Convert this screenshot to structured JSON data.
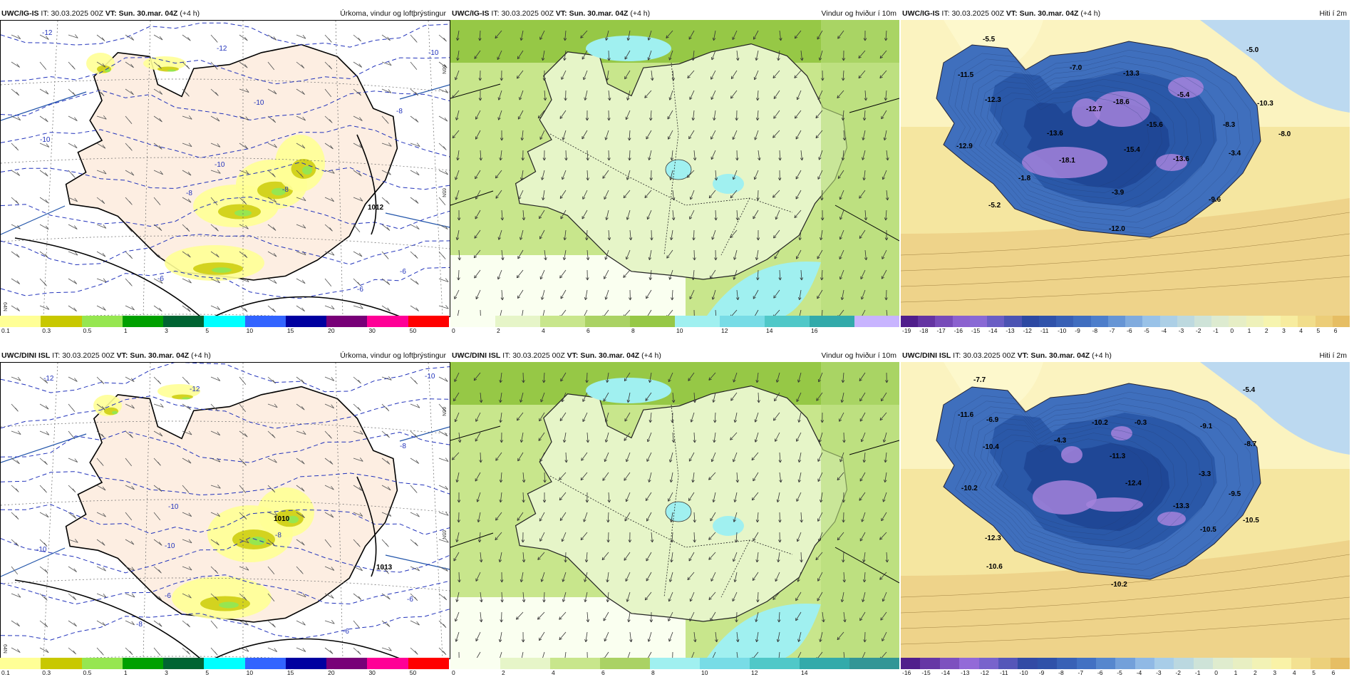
{
  "rows": [
    {
      "model": "UWC/IG-IS",
      "panels": [
        {
          "product": "Úrkoma, vindur og loftþrýstingur",
          "type": "precip",
          "map_labels": [
            "-12",
            "-12",
            "-10",
            "-10",
            "-10",
            "-10",
            "-8",
            "-8",
            "-8",
            "-6",
            "-6",
            "-6",
            "1012"
          ],
          "lat_labels": [
            "66N",
            "65N",
            "64N"
          ]
        },
        {
          "product": "Vindur og hviður í 10m",
          "type": "wind",
          "map_labels": []
        },
        {
          "product": "Hiti í 2m",
          "type": "temp",
          "map_labels": [
            "-5.5",
            "-11.5",
            "-12.3",
            "-12.9",
            "-7.0",
            "-13.3",
            "-18.6",
            "-12.7",
            "-13.6",
            "-18.1",
            "-1.8",
            "-5.2",
            "-15.6",
            "-15.4",
            "-5.4",
            "-10.3",
            "-5.0",
            "-8.3",
            "-8.0",
            "-3.4",
            "-13.6",
            "-3.9",
            "-12.0",
            "-9.6"
          ]
        }
      ]
    },
    {
      "model": "UWC/DINI ISL",
      "panels": [
        {
          "product": "Úrkoma, vindur og loftþrýstingur",
          "type": "precip",
          "map_labels": [
            "-12",
            "-12",
            "-10",
            "-10",
            "-10",
            "-10",
            "-8",
            "-8",
            "-8",
            "-6",
            "-6",
            "-6",
            "1010",
            "1013"
          ],
          "lat_labels": [
            "66N",
            "65N",
            "64N"
          ]
        },
        {
          "product": "Vindur og hviður í 10m",
          "type": "wind",
          "map_labels": []
        },
        {
          "product": "Hiti í 2m",
          "type": "temp",
          "map_labels": [
            "-7.7",
            "-11.6",
            "-6.9",
            "-10.4",
            "-4.3",
            "-10.2",
            "-0.3",
            "-11.3",
            "-9.1",
            "-5.4",
            "-8.7",
            "-3.3",
            "-10.5",
            "-12.3",
            "-10.2",
            "-12.4",
            "-13.3",
            "-9.5",
            "-10.5",
            "-10.6",
            "-10.2"
          ]
        }
      ]
    }
  ],
  "run_info": {
    "it_label": "IT:",
    "it_value": "30.03.2025 00Z",
    "vt_label": "VT:",
    "vt_value": "Sun. 30.mar. 04Z",
    "lead": "(+4 h)"
  },
  "colorbars": {
    "precip": {
      "colors": [
        "#ffff96",
        "#c8c800",
        "#96e650",
        "#00a000",
        "#006432",
        "#00ffff",
        "#3264ff",
        "#0000a0",
        "#780078",
        "#ff0096",
        "#ff0000"
      ],
      "ticks": [
        "0.1",
        "0.3",
        "0.5",
        "1",
        "3",
        "5",
        "10",
        "15",
        "20",
        "30",
        "50"
      ]
    },
    "wind_top": {
      "colors": [
        "#fafff0",
        "#e6f5c8",
        "#c8e68c",
        "#aad264",
        "#96c846",
        "#a0f0f0",
        "#78dce6",
        "#50c8c8",
        "#32aaaa",
        "#c8b4ff"
      ],
      "ticks": [
        "0",
        "2",
        "4",
        "6",
        "8",
        "10",
        "12",
        "14",
        "16"
      ]
    },
    "wind_bot": {
      "colors": [
        "#fafff0",
        "#e6f5c8",
        "#c8e68c",
        "#aad264",
        "#a0f0f0",
        "#78dce6",
        "#50c8c8",
        "#32aaaa",
        "#329696"
      ],
      "ticks": [
        "0",
        "2",
        "4",
        "6",
        "8",
        "10",
        "12",
        "14"
      ]
    },
    "temp_top": {
      "ticks": [
        "-19",
        "-18",
        "-17",
        "-16",
        "-15",
        "-14",
        "-13",
        "-12",
        "-11",
        "-10",
        "-9",
        "-8",
        "-7",
        "-6",
        "-5",
        "-4",
        "-3",
        "-2",
        "-1",
        "0",
        "1",
        "2",
        "3",
        "4",
        "5",
        "6"
      ]
    },
    "temp_bot": {
      "ticks": [
        "-16",
        "-15",
        "-14",
        "-13",
        "-12",
        "-11",
        "-10",
        "-9",
        "-8",
        "-7",
        "-6",
        "-5",
        "-4",
        "-3",
        "-2",
        "-1",
        "0",
        "1",
        "2",
        "3",
        "4",
        "5",
        "6"
      ]
    }
  },
  "colors": {
    "land_precip": "#fdeee2",
    "isobar": "#000000",
    "temp_contour": "#1f3fbf",
    "border_frame": "#000000"
  }
}
